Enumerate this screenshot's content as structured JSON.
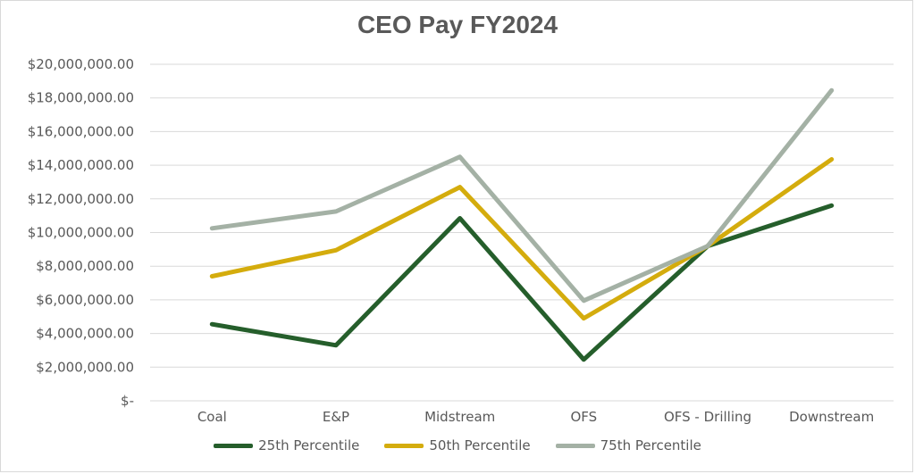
{
  "chart_data": {
    "type": "line",
    "title": "CEO Pay FY2024",
    "categories": [
      "Coal",
      "E&P",
      "Midstream",
      "OFS",
      "OFS - Drilling",
      "Downstream"
    ],
    "y_ticks": [
      "$-",
      "$2,000,000.00",
      "$4,000,000.00",
      "$6,000,000.00",
      "$8,000,000.00",
      "$10,000,000.00",
      "$12,000,000.00",
      "$14,000,000.00",
      "$16,000,000.00",
      "$18,000,000.00",
      "$20,000,000.00"
    ],
    "ylim": [
      0,
      20000000
    ],
    "grid": true,
    "legend_position": "bottom",
    "series": [
      {
        "name": "25th Percentile",
        "color": "#255e2b",
        "values": [
          4550000,
          3300000,
          10850000,
          2450000,
          9200000,
          11600000
        ]
      },
      {
        "name": "50th Percentile",
        "color": "#d4ac0d",
        "values": [
          7400000,
          8950000,
          12700000,
          4900000,
          9200000,
          14350000
        ]
      },
      {
        "name": "75th Percentile",
        "color": "#a4b1a5",
        "values": [
          10250000,
          11250000,
          14500000,
          5950000,
          9200000,
          18450000
        ]
      }
    ]
  }
}
